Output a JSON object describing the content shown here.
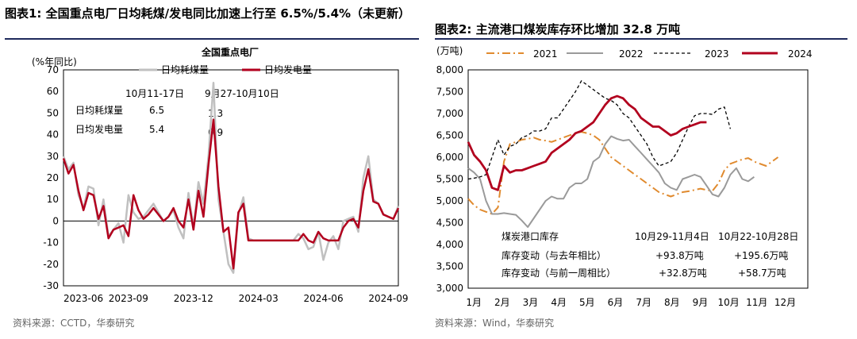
{
  "left": {
    "figure_title": "图表1:  全国重点电厂日均耗煤/发电同比加速上行至 6.5%/5.4%（未更新）",
    "source": "资料来源：CCTD，华泰研究"
  },
  "right": {
    "figure_title": "图表2:  主流港口煤炭库存环比增加 32.8 万吨",
    "source": "资料来源：Wind，华泰研究"
  },
  "chart_data": [
    {
      "type": "line",
      "title": "全国重点电厂",
      "ylabel": "(%年同比)",
      "ylim": [
        -30,
        70
      ],
      "yticks": [
        -30,
        -20,
        -10,
        0,
        10,
        20,
        30,
        40,
        50,
        60,
        70
      ],
      "x_tick_labels": [
        "2023-06",
        "2023-09",
        "2023-12",
        "2024-03",
        "2024-06",
        "2024-09"
      ],
      "x_tick_index": [
        0,
        13,
        26,
        39,
        52,
        65
      ],
      "legend": [
        "日均耗煤量",
        "日均发电量"
      ],
      "colors": {
        "coal": "#c0c0c0",
        "power": "#b2001e"
      },
      "series": [
        {
          "name": "日均耗煤量",
          "values": [
            30,
            24,
            27,
            12,
            6,
            16,
            15,
            -2,
            10,
            -7,
            -4,
            -1,
            -10,
            12,
            4,
            1,
            2,
            5,
            8,
            4,
            0,
            2,
            5,
            -3,
            -8,
            13,
            -3,
            18,
            8,
            30,
            64,
            10,
            -5,
            -20,
            -24,
            3,
            11,
            -8,
            -9,
            -9,
            -9,
            -9,
            -9,
            -9,
            -9,
            -9,
            -9,
            -6,
            -8,
            -13,
            -12,
            -5,
            -18,
            -10,
            -7,
            -13,
            0,
            1,
            2,
            -5,
            20,
            30,
            10,
            8,
            3,
            2,
            1,
            7
          ]
        },
        {
          "name": "日均发电量",
          "values": [
            29,
            22,
            26,
            14,
            5,
            13,
            12,
            1,
            7,
            -8,
            -4,
            -3,
            -2,
            -7,
            12,
            5,
            1,
            3,
            6,
            3,
            0,
            2,
            6,
            0,
            -3,
            10,
            -4,
            14,
            2,
            26,
            47,
            16,
            -5,
            -3,
            -22,
            4,
            8,
            -9,
            -9,
            -9,
            -9,
            -9,
            -9,
            -9,
            -9,
            -9,
            -9,
            -9,
            -6,
            -9,
            -10,
            -5,
            -8,
            -9,
            -9,
            -9,
            -3,
            0,
            1,
            -3,
            14,
            24,
            9,
            8,
            3,
            2,
            1,
            6
          ]
        }
      ],
      "table": {
        "col1_header": "10月11-17日",
        "col2_header": "9月27-10月10日",
        "rows": [
          {
            "label": "日均耗煤量",
            "v1": "6.5",
            "v2": "1.3"
          },
          {
            "label": "日均发电量",
            "v1": "5.4",
            "v2": "0.9"
          }
        ]
      }
    },
    {
      "type": "line",
      "ylabel": "(万吨)",
      "ylim": [
        3000,
        8000
      ],
      "yticks": [
        3000,
        3500,
        4000,
        4500,
        5000,
        5500,
        6000,
        6500,
        7000,
        7500,
        8000
      ],
      "ytick_labels": [
        "3,000",
        "3,500",
        "4,000",
        "4,500",
        "5,000",
        "5,500",
        "6,000",
        "6,500",
        "7,000",
        "7,500",
        "8,000"
      ],
      "months": [
        "1月",
        "2月",
        "3月",
        "4月",
        "5月",
        "6月",
        "7月",
        "8月",
        "9月",
        "10月",
        "11月",
        "12月"
      ],
      "x_range_weeks": [
        0,
        57
      ],
      "legend": [
        "2021",
        "2022",
        "2023",
        "2024"
      ],
      "colors": {
        "2021": "#e08a2e",
        "2022": "#9a9a9a",
        "2023": "#000000",
        "2024": "#b2001e"
      },
      "series": [
        {
          "name": "2021",
          "weeks": [
            0,
            1,
            2,
            3,
            4,
            5,
            6,
            7,
            8,
            9,
            10,
            11,
            12,
            13,
            14,
            15,
            16,
            17,
            18,
            19,
            20,
            21,
            22,
            23,
            24,
            25,
            26,
            27,
            28,
            29,
            30,
            31,
            32,
            33,
            34,
            35,
            36,
            37,
            38,
            39,
            40,
            41,
            42,
            43,
            44,
            45,
            46,
            47,
            48,
            49,
            50,
            51,
            52,
            53,
            54,
            55,
            56
          ],
          "values": [
            5050,
            4900,
            4800,
            4750,
            4700,
            4850,
            5900,
            6300,
            6350,
            6400,
            6420,
            6450,
            6400,
            6380,
            6350,
            6400,
            6450,
            6500,
            6550,
            6580,
            6550,
            6500,
            6400,
            6200,
            6000,
            5900,
            5800,
            5700,
            5600,
            5500,
            5400,
            5300,
            5200,
            5150,
            5100,
            5150,
            5200,
            5220,
            5250,
            5280,
            5250,
            5230,
            5400,
            5700,
            5850,
            5900,
            5950,
            5980,
            5900,
            5850,
            5800,
            5900,
            6000,
            null,
            null,
            null,
            null
          ]
        },
        {
          "name": "2022",
          "weeks": [
            0,
            1,
            2,
            3,
            4,
            5,
            6,
            7,
            8,
            9,
            10,
            11,
            12,
            13,
            14,
            15,
            16,
            17,
            18,
            19,
            20,
            21,
            22,
            23,
            24,
            25,
            26,
            27,
            28,
            29,
            30,
            31,
            32,
            33,
            34,
            35,
            36,
            37,
            38,
            39,
            40,
            41,
            42,
            43,
            44,
            45,
            46,
            47,
            48,
            49,
            50,
            51,
            52,
            53,
            54,
            55,
            56
          ],
          "values": [
            5750,
            5650,
            5500,
            5000,
            4700,
            4700,
            4720,
            4700,
            4680,
            4550,
            4400,
            4600,
            4800,
            5000,
            5100,
            5050,
            5050,
            5300,
            5400,
            5400,
            5500,
            5900,
            6000,
            6300,
            6480,
            6420,
            6380,
            6400,
            6250,
            6100,
            5950,
            5800,
            5650,
            5400,
            5300,
            5250,
            5500,
            5550,
            5600,
            5550,
            5350,
            5150,
            5100,
            5300,
            5600,
            5750,
            5500,
            5450,
            5550,
            null,
            null,
            null,
            null,
            null,
            null,
            null,
            null
          ]
        },
        {
          "name": "2023",
          "weeks": [
            0,
            1,
            2,
            3,
            4,
            5,
            6,
            7,
            8,
            9,
            10,
            11,
            12,
            13,
            14,
            15,
            16,
            17,
            18,
            19,
            20,
            21,
            22,
            23,
            24,
            25,
            26,
            27,
            28,
            29,
            30,
            31,
            32,
            33,
            34,
            35,
            36,
            37,
            38,
            39,
            40,
            41,
            42,
            43,
            44,
            45,
            46,
            47,
            48,
            49,
            50,
            51,
            52,
            53,
            54,
            55,
            56
          ],
          "values": [
            5500,
            5520,
            5550,
            5600,
            6000,
            6400,
            6050,
            6250,
            6300,
            6450,
            6500,
            6600,
            6600,
            6650,
            6900,
            6900,
            7100,
            7300,
            7500,
            7750,
            7650,
            7550,
            7450,
            7350,
            7300,
            7200,
            7000,
            6900,
            6700,
            6500,
            6300,
            6000,
            5800,
            5850,
            5900,
            6100,
            6400,
            6700,
            6950,
            7000,
            7000,
            6980,
            7100,
            7150,
            6650,
            null,
            null,
            null,
            null,
            null,
            null,
            null,
            null,
            null,
            null,
            null,
            null
          ]
        },
        {
          "name": "2024",
          "weeks": [
            0,
            1,
            2,
            3,
            4,
            5,
            6,
            7,
            8,
            9,
            10,
            11,
            12,
            13,
            14,
            15,
            16,
            17,
            18,
            19,
            20,
            21,
            22,
            23,
            24,
            25,
            26,
            27,
            28,
            29,
            30,
            31,
            32,
            33,
            34,
            35,
            36,
            37,
            38,
            39,
            40,
            41,
            42,
            43,
            44,
            45,
            46,
            47,
            48,
            49,
            50,
            51,
            52,
            53,
            54,
            55,
            56
          ],
          "values": [
            6350,
            6050,
            5900,
            5700,
            5300,
            5250,
            5800,
            5650,
            5700,
            5700,
            5750,
            5800,
            5850,
            5900,
            6100,
            6200,
            6300,
            6400,
            6550,
            6600,
            6700,
            6800,
            7000,
            7200,
            7350,
            7400,
            7350,
            7200,
            7100,
            6900,
            6800,
            6700,
            6700,
            6600,
            6500,
            6550,
            6650,
            6700,
            6750,
            6800,
            6800,
            null,
            null,
            null,
            null,
            null,
            null,
            null,
            null,
            null,
            null,
            null,
            null,
            null,
            null,
            null,
            null
          ]
        }
      ],
      "table": {
        "title": "煤炭港口库存",
        "col1_header": "10月29-11月4日",
        "col2_header": "10月22-10月28日",
        "rows": [
          {
            "label": "库存变动（与去年相比）",
            "v1": "+93.8万吨",
            "v2": "+195.6万吨"
          },
          {
            "label": "库存变动（与前一周相比）",
            "v1": "+32.8万吨",
            "v2": "+58.7万吨"
          }
        ]
      }
    }
  ]
}
